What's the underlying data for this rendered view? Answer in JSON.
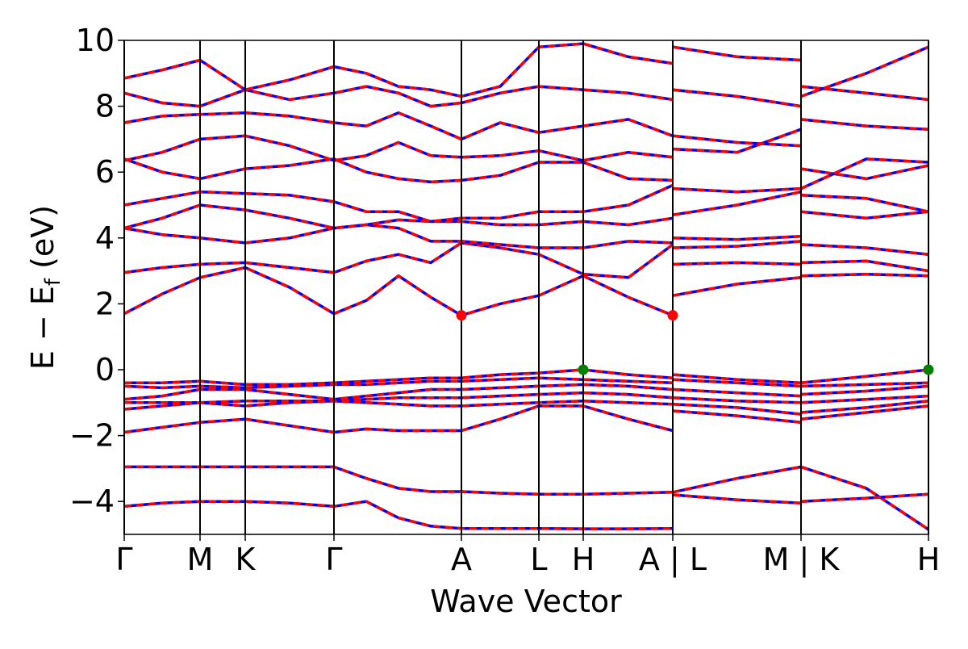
{
  "chart_data": {
    "type": "band-structure",
    "xlabel": "Wave Vector",
    "ylabel": {
      "main": "E − E",
      "sub": "f",
      "unit": "(eV)"
    },
    "line_color": "#0000ff",
    "dash_color": "#ff0000",
    "xlim": [
      0,
      9.97
    ],
    "ylim": [
      -5,
      10
    ],
    "xticks": [
      {
        "value": 0,
        "label": "Γ"
      },
      {
        "value": 0.94,
        "label": "M"
      },
      {
        "value": 1.5,
        "label": "K"
      },
      {
        "value": 2.6,
        "label": "Γ"
      },
      {
        "value": 4.18,
        "label": "A"
      },
      {
        "value": 5.14,
        "label": "L"
      },
      {
        "value": 5.69,
        "label": "H"
      },
      {
        "value": 6.8,
        "label": "A | L"
      },
      {
        "value": 8.39,
        "label": "M | K"
      },
      {
        "value": 9.97,
        "label": "H"
      }
    ],
    "yticks": [
      {
        "value": -4,
        "label": "−4"
      },
      {
        "value": -2,
        "label": "−2"
      },
      0,
      2,
      4,
      6,
      8,
      10
    ],
    "x": [
      0,
      0.47,
      0.94,
      1.5,
      2.05,
      2.6,
      3.0,
      3.4,
      3.8,
      4.18,
      4.66,
      5.14,
      5.69,
      6.25,
      6.8,
      6.8,
      6.8,
      7.6,
      8.39,
      8.39,
      8.39,
      9.2,
      9.97
    ],
    "series": [
      {
        "values": [
          -4.15,
          -4.05,
          -4.0,
          -4.0,
          -4.05,
          -4.15,
          -4.0,
          -4.5,
          -4.75,
          -4.82,
          -4.82,
          -4.82,
          -4.83,
          -4.83,
          -4.82,
          null,
          -3.8,
          -3.95,
          -4.05,
          null,
          -2.95,
          -3.6,
          -4.85
        ]
      },
      {
        "values": [
          -2.95,
          -2.95,
          -2.95,
          -2.95,
          -2.95,
          -2.95,
          -3.3,
          -3.6,
          -3.7,
          -3.7,
          -3.75,
          -3.78,
          -3.78,
          -3.75,
          -3.72,
          null,
          -3.72,
          -3.3,
          -2.95,
          null,
          -4.0,
          -3.9,
          -3.78
        ]
      },
      {
        "values": [
          -1.9,
          -1.75,
          -1.6,
          -1.5,
          -1.7,
          -1.9,
          -1.8,
          -1.85,
          -1.85,
          -1.85,
          -1.5,
          -1.1,
          -1.1,
          -1.5,
          -1.85,
          null,
          -1.25,
          -1.4,
          -1.6,
          null,
          -1.5,
          -1.3,
          -1.1
        ]
      },
      {
        "values": [
          -1.2,
          -1.1,
          -1.0,
          -1.1,
          -1.0,
          -0.95,
          -1.0,
          -1.05,
          -1.1,
          -1.1,
          -1.05,
          -1.0,
          -0.95,
          -1.0,
          -1.05,
          null,
          -1.05,
          -1.15,
          -1.35,
          null,
          -1.3,
          -1.15,
          -0.95
        ]
      },
      {
        "values": [
          -1.0,
          -1.0,
          -1.0,
          -0.95,
          -0.95,
          -0.95,
          -0.9,
          -0.85,
          -0.85,
          -0.85,
          -0.8,
          -0.75,
          -0.7,
          -0.75,
          -0.85,
          null,
          -0.85,
          -0.95,
          -1.0,
          null,
          -1.0,
          -0.9,
          -0.8
        ]
      },
      {
        "values": [
          -0.9,
          -0.8,
          -0.6,
          -0.6,
          -0.75,
          -0.9,
          -0.8,
          -0.7,
          -0.6,
          -0.6,
          -0.55,
          -0.5,
          -0.45,
          -0.5,
          -0.6,
          null,
          -0.6,
          -0.7,
          -0.8,
          null,
          -0.75,
          -0.65,
          -0.5
        ]
      },
      {
        "values": [
          -0.5,
          -0.55,
          -0.5,
          -0.55,
          -0.5,
          -0.45,
          -0.45,
          -0.4,
          -0.35,
          -0.35,
          -0.3,
          -0.25,
          -0.3,
          -0.35,
          -0.4,
          null,
          -0.3,
          -0.4,
          -0.5,
          null,
          -0.5,
          -0.45,
          -0.4
        ]
      },
      {
        "values": [
          -0.4,
          -0.4,
          -0.35,
          -0.45,
          -0.45,
          -0.4,
          -0.35,
          -0.3,
          -0.25,
          -0.25,
          -0.15,
          -0.1,
          0,
          -0.15,
          -0.25,
          null,
          -0.15,
          -0.3,
          -0.4,
          null,
          -0.4,
          -0.2,
          0
        ]
      },
      {
        "values": [
          1.7,
          2.3,
          2.8,
          3.1,
          2.5,
          1.7,
          2.1,
          2.85,
          2.2,
          1.65,
          2.0,
          2.25,
          2.85,
          2.2,
          1.65,
          null,
          2.25,
          2.6,
          2.8,
          null,
          2.85,
          2.9,
          2.85
        ]
      },
      {
        "values": [
          2.95,
          3.1,
          3.2,
          3.25,
          3.1,
          2.95,
          3.3,
          3.5,
          3.25,
          3.85,
          3.7,
          3.5,
          2.9,
          2.8,
          3.8,
          null,
          3.2,
          3.25,
          3.2,
          null,
          3.25,
          3.3,
          3.0
        ]
      },
      {
        "values": [
          4.3,
          4.1,
          4.0,
          3.85,
          4.0,
          4.3,
          4.4,
          4.3,
          3.9,
          3.9,
          3.8,
          3.7,
          3.7,
          3.9,
          3.85,
          null,
          3.7,
          3.75,
          3.9,
          null,
          3.8,
          3.7,
          3.5
        ]
      },
      {
        "values": [
          4.3,
          4.6,
          5.0,
          4.85,
          4.6,
          4.3,
          4.4,
          4.55,
          4.5,
          4.5,
          4.4,
          4.4,
          4.5,
          4.4,
          4.6,
          null,
          4.0,
          3.95,
          4.05,
          null,
          4.8,
          4.6,
          4.8
        ]
      },
      {
        "values": [
          5.0,
          5.2,
          5.4,
          5.35,
          5.3,
          5.1,
          4.8,
          4.8,
          4.5,
          4.6,
          4.6,
          4.8,
          4.8,
          5.0,
          5.6,
          null,
          4.7,
          5.0,
          5.4,
          null,
          5.3,
          5.2,
          4.8
        ]
      },
      {
        "values": [
          6.4,
          6.0,
          5.8,
          6.1,
          6.2,
          6.4,
          6.0,
          5.8,
          5.7,
          5.75,
          5.9,
          6.3,
          6.3,
          5.8,
          5.75,
          null,
          5.5,
          5.4,
          5.5,
          null,
          6.1,
          5.8,
          6.2
        ]
      },
      {
        "values": [
          6.35,
          6.6,
          7.0,
          7.1,
          6.8,
          6.35,
          6.5,
          6.9,
          6.5,
          6.45,
          6.5,
          6.65,
          6.35,
          6.6,
          6.45,
          null,
          6.7,
          6.6,
          7.3,
          null,
          5.5,
          6.4,
          6.3
        ]
      },
      {
        "values": [
          7.5,
          7.7,
          7.75,
          7.8,
          7.7,
          7.5,
          7.4,
          7.8,
          7.4,
          7.0,
          7.5,
          7.2,
          7.4,
          7.6,
          7.1,
          null,
          7.1,
          6.9,
          6.8,
          null,
          7.6,
          7.4,
          7.3
        ]
      },
      {
        "values": [
          8.4,
          8.1,
          8.0,
          8.5,
          8.2,
          8.4,
          8.6,
          8.4,
          8.0,
          8.1,
          8.4,
          8.6,
          8.5,
          8.4,
          8.2,
          null,
          8.5,
          8.3,
          8.0,
          null,
          8.6,
          8.4,
          8.2
        ]
      },
      {
        "values": [
          8.85,
          9.1,
          9.4,
          8.5,
          8.8,
          9.2,
          9.0,
          8.6,
          8.5,
          8.3,
          8.6,
          9.8,
          9.9,
          9.5,
          9.3,
          null,
          9.8,
          9.5,
          9.4,
          null,
          8.3,
          9.0,
          9.8
        ]
      }
    ],
    "points": [
      {
        "color": "#ff0000",
        "x": [
          4.18,
          6.8
        ],
        "y": [
          1.65,
          1.65
        ]
      },
      {
        "color": "#008000",
        "x": [
          5.69,
          9.97
        ],
        "y": [
          0,
          0
        ]
      }
    ]
  }
}
